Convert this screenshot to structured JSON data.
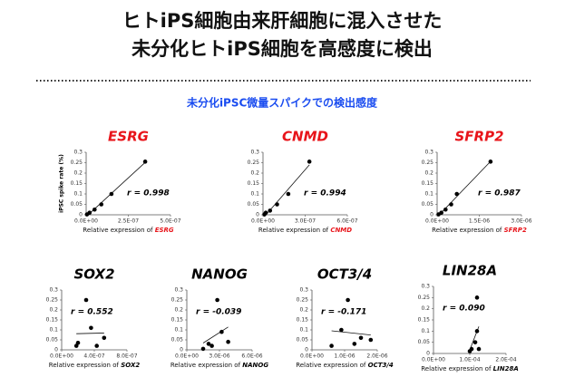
{
  "header": {
    "title_lines": [
      "ヒトiPS細胞由来肝細胞に混入させた",
      "未分化ヒトiPS細胞を高感度に検出"
    ],
    "subtitle": "未分化iPSC微量スパイクでの検出感度"
  },
  "chart_data": [
    {
      "type": "scatter",
      "title": "ESRG",
      "title_color": "#e8141a",
      "ylabel": "iPSC spike rate (%)",
      "xlabel": "Relative expression of",
      "annotation": "r = 0.998",
      "x": [
        5e-09,
        2e-08,
        5e-08,
        9e-08,
        1.5e-07,
        3.5e-07
      ],
      "values": [
        0.002,
        0.01,
        0.025,
        0.05,
        0.1,
        0.255
      ],
      "color": "#000000",
      "xlim": [
        0,
        5e-07
      ],
      "xticks": [
        {
          "value": 0,
          "label": "0.0E+00"
        },
        {
          "value": 2.5e-07,
          "label": "2.5E-07"
        },
        {
          "value": 5e-07,
          "label": "5.0E-07"
        }
      ],
      "ylim": [
        0,
        0.3
      ],
      "yticks": [
        0,
        0.05,
        0.1,
        0.15,
        0.2,
        0.25,
        0.3
      ]
    },
    {
      "type": "scatter",
      "title": "CNMD",
      "title_color": "#e8141a",
      "xlabel": "Relative expression of",
      "annotation": "r = 0.994",
      "x": [
        1e-08,
        2e-08,
        5e-08,
        1e-07,
        1.8e-07,
        3.3e-07
      ],
      "values": [
        0.002,
        0.01,
        0.02,
        0.05,
        0.1,
        0.255
      ],
      "color": "#000000",
      "xlim": [
        0,
        6e-07
      ],
      "xticks": [
        {
          "value": 0,
          "label": "0.0E+00"
        },
        {
          "value": 3e-07,
          "label": "3.0E-07"
        },
        {
          "value": 6e-07,
          "label": "6.0E-07"
        }
      ],
      "ylim": [
        0,
        0.3
      ],
      "yticks": [
        0,
        0.05,
        0.1,
        0.15,
        0.2,
        0.25,
        0.3
      ]
    },
    {
      "type": "scatter",
      "title": "SFRP2",
      "title_color": "#e8141a",
      "xlabel": "Relative expression of",
      "annotation": "r = 0.987",
      "x": [
        5e-08,
        1.5e-07,
        3e-07,
        5e-07,
        7e-07,
        1.9e-06
      ],
      "values": [
        0.002,
        0.01,
        0.025,
        0.05,
        0.1,
        0.255
      ],
      "color": "#000000",
      "xlim": [
        0,
        3e-06
      ],
      "xticks": [
        {
          "value": 0,
          "label": "0.0E+00"
        },
        {
          "value": 1.5e-06,
          "label": "1.5E-06"
        },
        {
          "value": 3e-06,
          "label": "3.0E-06"
        }
      ],
      "ylim": [
        0,
        0.3
      ],
      "yticks": [
        0,
        0.05,
        0.1,
        0.15,
        0.2,
        0.25,
        0.3
      ]
    },
    {
      "type": "scatter",
      "title": "SOX2",
      "title_color": "#000000",
      "xlabel": "Relative expression of",
      "annotation": "r = 0.552",
      "x": [
        1.8e-07,
        2e-07,
        3e-07,
        3.6e-07,
        4.3e-07,
        5.2e-07
      ],
      "values": [
        0.02,
        0.035,
        0.25,
        0.11,
        0.02,
        0.06
      ],
      "color": "#000000",
      "xlim": [
        0,
        8e-07
      ],
      "xticks": [
        {
          "value": 0,
          "label": "0.0E+00"
        },
        {
          "value": 4e-07,
          "label": "4.0E-07"
        },
        {
          "value": 8e-07,
          "label": "8.0E-07"
        }
      ],
      "ylim": [
        0,
        0.3
      ],
      "yticks": [
        0,
        0.05,
        0.1,
        0.15,
        0.2,
        0.25,
        0.3
      ]
    },
    {
      "type": "scatter",
      "title": "NANOG",
      "title_color": "#000000",
      "xlabel": "Relative expression of",
      "annotation": "r = -0.039",
      "x": [
        1.5e-06,
        2e-06,
        2.3e-06,
        2.8e-06,
        3.2e-06,
        3.8e-06
      ],
      "values": [
        0.005,
        0.03,
        0.02,
        0.25,
        0.09,
        0.04
      ],
      "color": "#000000",
      "xlim": [
        0,
        6e-06
      ],
      "xticks": [
        {
          "value": 0,
          "label": "0.0E+00"
        },
        {
          "value": 3e-06,
          "label": "3.0E-06"
        },
        {
          "value": 6e-06,
          "label": "6.0E-06"
        }
      ],
      "ylim": [
        0,
        0.3
      ],
      "yticks": [
        0,
        0.05,
        0.1,
        0.15,
        0.2,
        0.25,
        0.3
      ]
    },
    {
      "type": "scatter",
      "title": "OCT3/4",
      "title_color": "#000000",
      "xlabel": "Relative expression of",
      "annotation": "r = -0.171",
      "x": [
        6e-07,
        9e-07,
        1.1e-06,
        1.3e-06,
        1.5e-06,
        1.8e-06
      ],
      "values": [
        0.02,
        0.1,
        0.25,
        0.03,
        0.06,
        0.05
      ],
      "color": "#000000",
      "xlim": [
        0,
        2e-06
      ],
      "xticks": [
        {
          "value": 0,
          "label": "0.0E+00"
        },
        {
          "value": 1e-06,
          "label": "1.0E-06"
        },
        {
          "value": 2e-06,
          "label": "2.0E-06"
        }
      ],
      "ylim": [
        0,
        0.3
      ],
      "yticks": [
        0,
        0.05,
        0.1,
        0.15,
        0.2,
        0.25,
        0.3
      ]
    },
    {
      "type": "scatter",
      "title": "LIN28A",
      "title_color": "#000000",
      "xlabel": "Relative expression of",
      "annotation": "r = 0.090",
      "x": [
        0.0001,
        0.000105,
        0.000115,
        0.00012,
        0.00012,
        0.000125
      ],
      "values": [
        0.01,
        0.02,
        0.05,
        0.1,
        0.25,
        0.02
      ],
      "color": "#000000",
      "xlim": [
        0,
        0.0002
      ],
      "xticks": [
        {
          "value": 0,
          "label": "0.0E+00"
        },
        {
          "value": 0.0001,
          "label": "1.0E-04"
        },
        {
          "value": 0.0002,
          "label": "2.0E-04"
        }
      ],
      "ylim": [
        0,
        0.3
      ],
      "yticks": [
        0,
        0.05,
        0.1,
        0.15,
        0.2,
        0.25,
        0.3
      ]
    }
  ]
}
